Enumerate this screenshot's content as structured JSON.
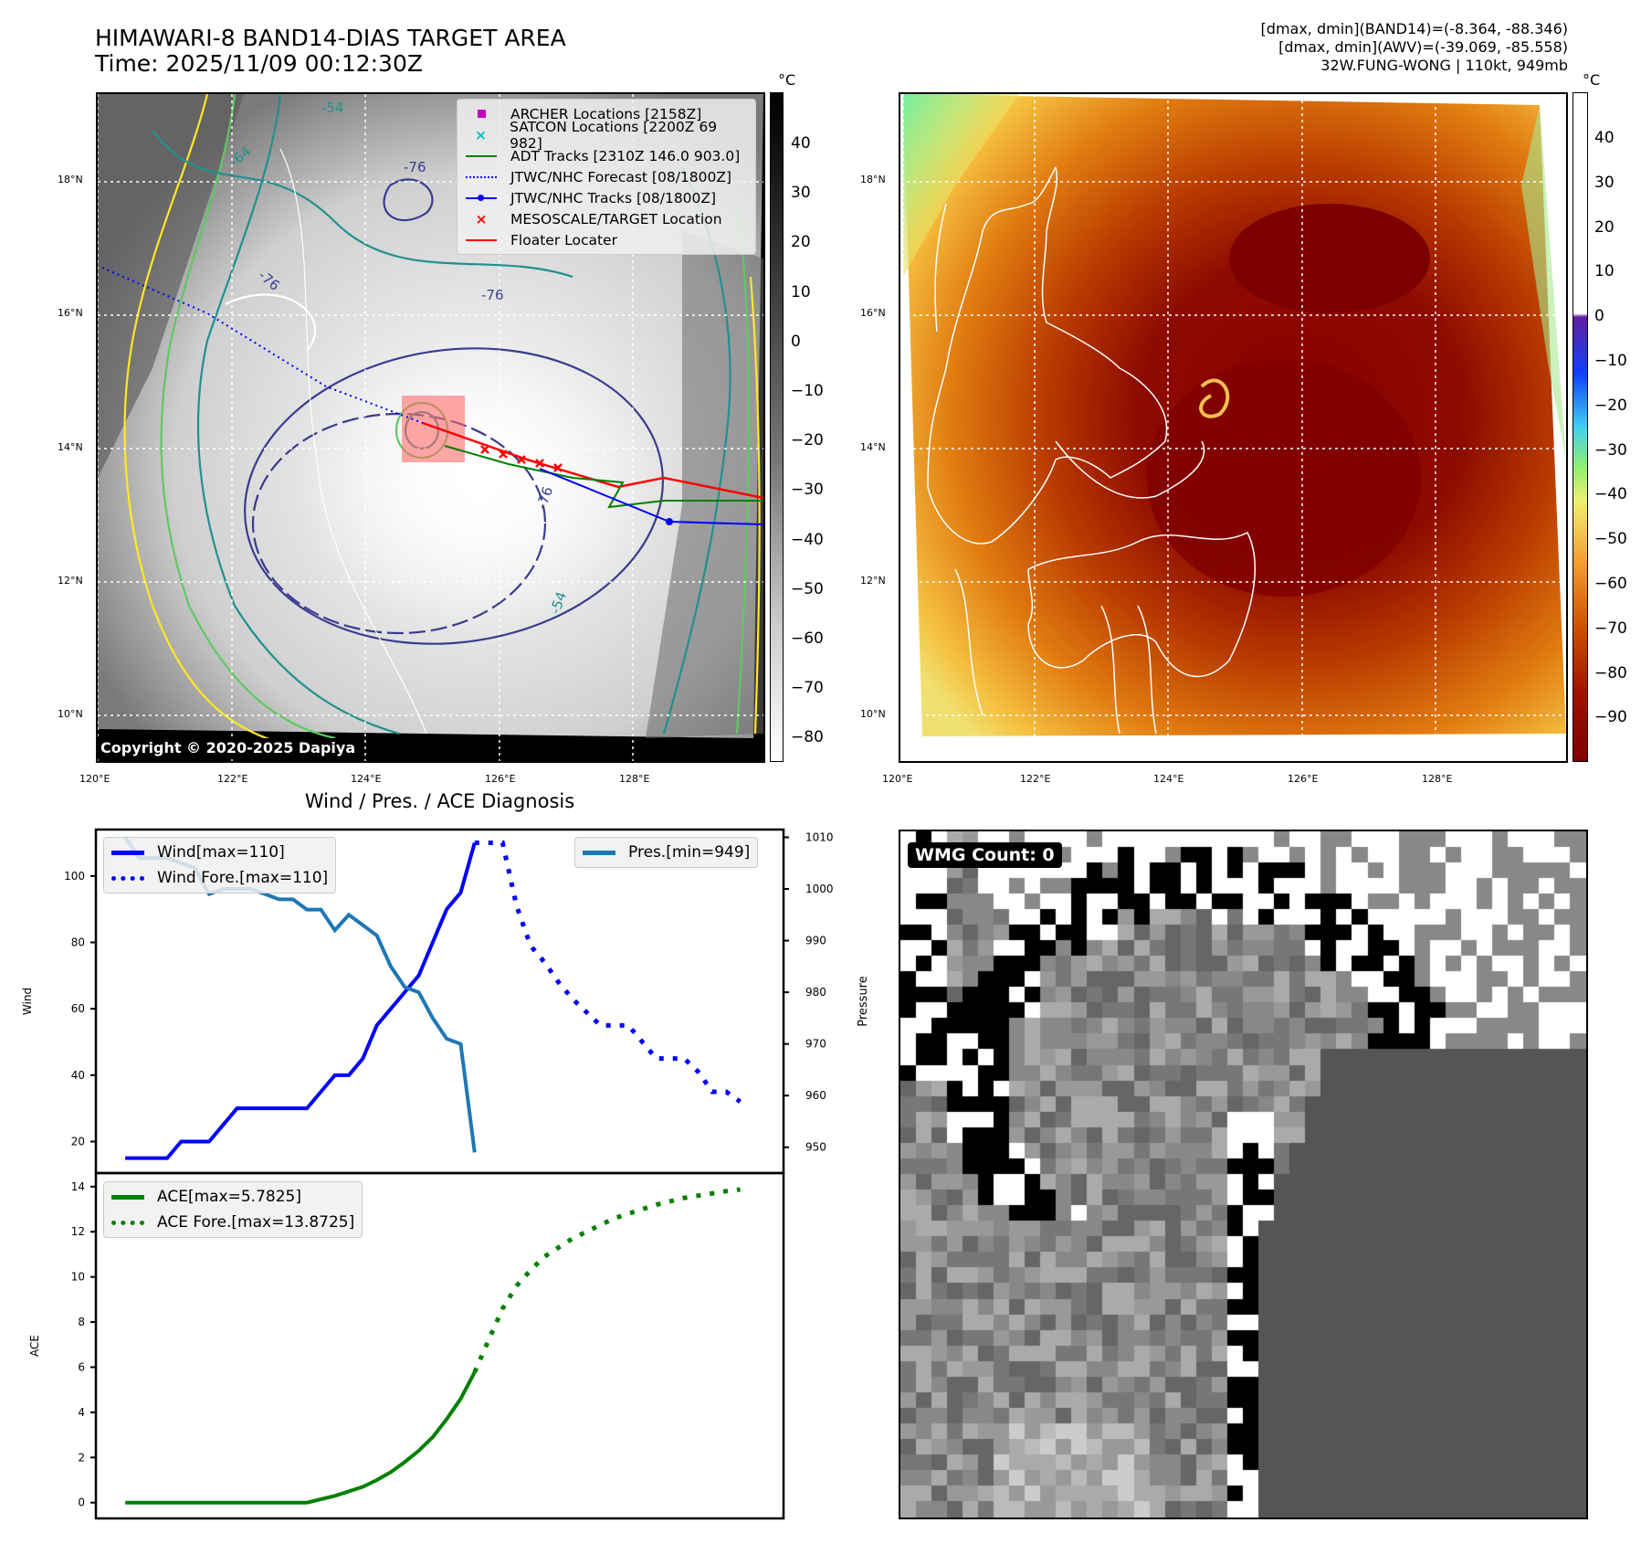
{
  "header": {
    "title_line1": "HIMAWARI-8 BAND14-DIAS TARGET AREA",
    "title_line2": "Time: 2025/11/09 00:12:30Z",
    "info_line1": "[dmax, dmin](BAND14)=(-8.364, -88.346)",
    "info_line2": "[dmax, dmin](AWV)=(-39.069, -85.558)",
    "info_line3": "32W.FUNG-WONG | 110kt, 949mb"
  },
  "map": {
    "lon_labels": [
      "120°E",
      "122°E",
      "124°E",
      "126°E",
      "128°E"
    ],
    "lat_labels": [
      "18°N",
      "16°N",
      "14°N",
      "12°N",
      "10°N"
    ],
    "unit": "°C",
    "copyright": "Copyright © 2020-2025 Dapiya",
    "contour_labels": [
      "-54",
      "-64",
      "-76",
      "-76",
      "-76",
      "-76",
      "-54"
    ],
    "legend": [
      {
        "label": "ARCHER Locations [2158Z]",
        "color": "#c000c0",
        "icon": "square-marker"
      },
      {
        "label": "SATCON Locations [2200Z 69 982]",
        "color": "#00bfbf",
        "icon": "x-marker"
      },
      {
        "label": "ADT Tracks [2310Z 146.0 903.0]",
        "color": "#008000",
        "icon": "solid-line"
      },
      {
        "label": "JTWC/NHC Forecast [08/1800Z]",
        "color": "#0000ff",
        "icon": "dotted-line"
      },
      {
        "label": "JTWC/NHC Tracks [08/1800Z]",
        "color": "#0000ff",
        "icon": "line-dot"
      },
      {
        "label": "MESOSCALE/TARGET Location",
        "color": "#ff0000",
        "icon": "x-marker"
      },
      {
        "label": "Floater Locater",
        "color": "#ff0000",
        "icon": "solid-line"
      }
    ],
    "cbar_gray_ticks": [
      "40",
      "30",
      "20",
      "10",
      "0",
      "−10",
      "−20",
      "−30",
      "−40",
      "−50",
      "−60",
      "−70",
      "−80"
    ],
    "cbar_color_ticks": [
      "40",
      "30",
      "20",
      "10",
      "0",
      "−10",
      "−20",
      "−30",
      "−40",
      "−50",
      "−60",
      "−70",
      "−80",
      "−90"
    ]
  },
  "wmg": {
    "label": "WMG Count: 0"
  },
  "chart_data": {
    "type": "line",
    "title": "Wind / Pres. / ACE Diagnosis",
    "panels": [
      {
        "ylabel": "Wind",
        "ylabel_right": "Pressure",
        "ylim": [
          10.5,
          114
        ],
        "ylim_right": [
          945,
          1011.5
        ],
        "xlim": [
          -2.1,
          47.1
        ],
        "yticks": [
          20,
          40,
          60,
          80,
          100
        ],
        "yticks_right": [
          950,
          960,
          970,
          980,
          990,
          1000,
          1010
        ],
        "legend_left": [
          "Wind[max=110]",
          "Wind Fore.[max=110]"
        ],
        "legend_right": [
          "Pres.[min=949]"
        ],
        "series": [
          {
            "name": "Wind[max=110]",
            "color": "#0000ff",
            "style": "solid",
            "x0": 0,
            "values": [
              15,
              15,
              15,
              15,
              20,
              20,
              20,
              25,
              30,
              30,
              30,
              30,
              30,
              30,
              35,
              40,
              40,
              45,
              55,
              60,
              65,
              70,
              80,
              90,
              95,
              110
            ]
          },
          {
            "name": "Wind Fore.[max=110]",
            "color": "#0000ff",
            "style": "dotted",
            "x0": 25,
            "values": [
              110,
              110,
              110,
              91,
              79,
              74,
              68,
              63,
              59,
              55,
              55,
              55,
              50,
              45,
              45,
              45,
              41,
              35,
              35,
              32
            ]
          },
          {
            "name": "Pres.[min=949]",
            "color": "#1f77b4",
            "style": "solid",
            "axis": "right",
            "x0": 0,
            "values": [
              1010,
              1006,
              1006,
              1006,
              1005,
              1004,
              999,
              1000,
              1000,
              1000,
              999,
              998,
              998,
              996,
              996,
              992,
              995,
              993,
              991,
              985,
              981,
              980,
              975,
              971,
              970,
              949
            ]
          }
        ]
      },
      {
        "ylabel": "ACE",
        "ylim": [
          -0.7,
          14.6
        ],
        "xlim": [
          -2.1,
          47.1
        ],
        "yticks": [
          0,
          2,
          4,
          6,
          8,
          10,
          12,
          14
        ],
        "legend_left": [
          "ACE[max=5.7825]",
          "ACE Fore.[max=13.8725]"
        ],
        "series": [
          {
            "name": "ACE[max=5.7825]",
            "color": "#008000",
            "style": "solid",
            "x0": 0,
            "values": [
              0,
              0,
              0,
              0,
              0,
              0,
              0,
              0,
              0,
              0,
              0,
              0,
              0,
              0,
              0.15,
              0.3,
              0.5,
              0.7,
              1.0,
              1.35,
              1.8,
              2.3,
              2.9,
              3.7,
              4.6,
              5.78
            ]
          },
          {
            "name": "ACE Fore.[max=13.8725]",
            "color": "#008000",
            "style": "dotted",
            "x0": 25,
            "values": [
              5.78,
              7.2,
              8.6,
              9.6,
              10.3,
              10.9,
              11.3,
              11.7,
              12.0,
              12.3,
              12.6,
              12.8,
              13.0,
              13.2,
              13.35,
              13.5,
              13.6,
              13.7,
              13.8,
              13.87
            ]
          }
        ]
      }
    ]
  }
}
